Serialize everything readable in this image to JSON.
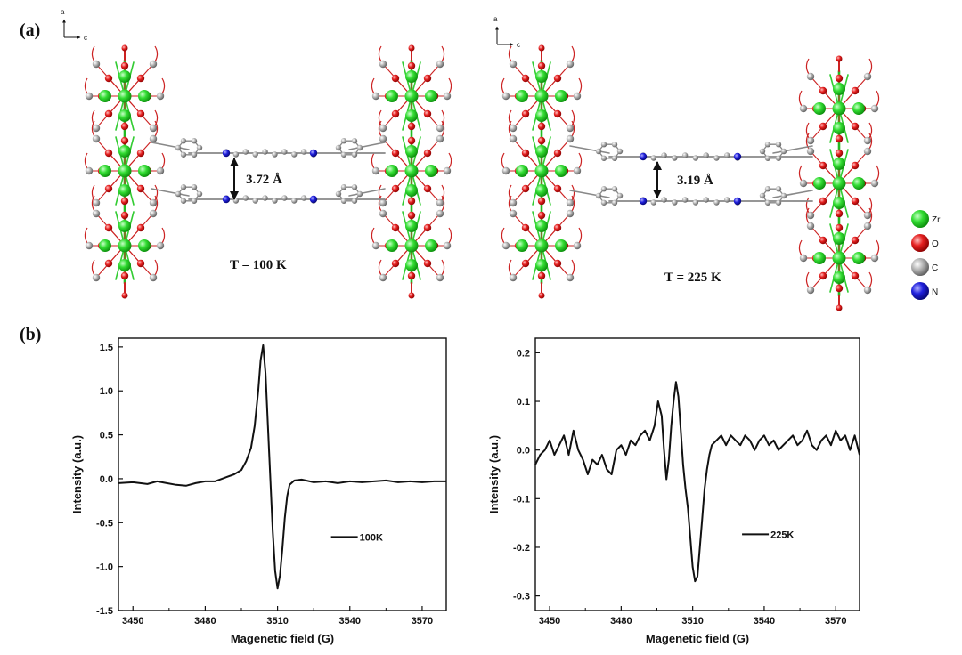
{
  "panel_a": {
    "label": "(a)",
    "axes_up": "a",
    "axes_right": "c",
    "left_structure": {
      "distance": "3.72 Å",
      "temperature": "T = 100 K"
    },
    "right_structure": {
      "distance": "3.19 Å",
      "temperature": "T = 225 K"
    },
    "legend": [
      {
        "symbol": "Zr",
        "color": "#22cc22"
      },
      {
        "symbol": "O",
        "color": "#dd1111"
      },
      {
        "symbol": "C",
        "color": "#999999"
      },
      {
        "symbol": "N",
        "color": "#1515cc"
      }
    ]
  },
  "panel_b": {
    "label": "(b)"
  },
  "chart_data": [
    {
      "type": "line",
      "xlabel": "Magenetic field (G)",
      "ylabel": "Intensity (a.u.)",
      "xlim": [
        3444,
        3580
      ],
      "ylim": [
        -1.5,
        1.6
      ],
      "xticks": [
        3450,
        3480,
        3510,
        3540,
        3570
      ],
      "yticks": [
        -1.5,
        -1.0,
        -0.5,
        0.0,
        0.5,
        1.0,
        1.5
      ],
      "series": [
        {
          "name": "100K",
          "x": [
            3444,
            3450,
            3456,
            3460,
            3464,
            3468,
            3472,
            3476,
            3480,
            3484,
            3488,
            3492,
            3495,
            3497,
            3499,
            3500.5,
            3502,
            3503,
            3504,
            3505,
            3506,
            3507,
            3508,
            3509,
            3510,
            3511,
            3512,
            3513,
            3514,
            3515,
            3517,
            3520,
            3525,
            3530,
            3535,
            3540,
            3545,
            3550,
            3555,
            3560,
            3565,
            3570,
            3575,
            3580
          ],
          "y": [
            -0.05,
            -0.04,
            -0.06,
            -0.03,
            -0.05,
            -0.07,
            -0.08,
            -0.05,
            -0.03,
            -0.03,
            0.01,
            0.05,
            0.1,
            0.2,
            0.35,
            0.6,
            1.0,
            1.35,
            1.52,
            1.2,
            0.6,
            0.0,
            -0.6,
            -1.05,
            -1.25,
            -1.1,
            -0.8,
            -0.45,
            -0.2,
            -0.07,
            -0.02,
            -0.01,
            -0.04,
            -0.03,
            -0.05,
            -0.03,
            -0.04,
            -0.03,
            -0.02,
            -0.04,
            -0.03,
            -0.04,
            -0.03,
            -0.03
          ]
        }
      ]
    },
    {
      "type": "line",
      "xlabel": "Magenetic field (G)",
      "ylabel": "Intensity (a.u.)",
      "xlim": [
        3444,
        3580
      ],
      "ylim": [
        -0.33,
        0.23
      ],
      "xticks": [
        3450,
        3480,
        3510,
        3540,
        3570
      ],
      "yticks": [
        -0.3,
        -0.2,
        -0.1,
        0.0,
        0.1,
        0.2
      ],
      "series": [
        {
          "name": "225K",
          "x": [
            3444,
            3446,
            3448,
            3450,
            3452,
            3454,
            3456,
            3458,
            3460,
            3462,
            3464,
            3466,
            3468,
            3470,
            3472,
            3474,
            3476,
            3478,
            3480,
            3482,
            3484,
            3486,
            3488,
            3490,
            3492,
            3494,
            3495.5,
            3497,
            3498,
            3499,
            3500,
            3501,
            3502,
            3503,
            3504,
            3505,
            3506,
            3507,
            3508,
            3509,
            3510,
            3511,
            3512,
            3513,
            3514,
            3515,
            3516,
            3517,
            3518,
            3520,
            3522,
            3524,
            3526,
            3528,
            3530,
            3532,
            3534,
            3536,
            3538,
            3540,
            3542,
            3544,
            3546,
            3548,
            3550,
            3552,
            3554,
            3556,
            3558,
            3560,
            3562,
            3564,
            3566,
            3568,
            3570,
            3572,
            3574,
            3576,
            3578,
            3580
          ],
          "y": [
            -0.03,
            -0.01,
            0.0,
            0.02,
            -0.01,
            0.01,
            0.03,
            -0.01,
            0.04,
            0.0,
            -0.02,
            -0.05,
            -0.02,
            -0.03,
            -0.01,
            -0.04,
            -0.05,
            0.0,
            0.01,
            -0.01,
            0.02,
            0.01,
            0.03,
            0.04,
            0.02,
            0.05,
            0.1,
            0.07,
            0.0,
            -0.06,
            -0.02,
            0.05,
            0.1,
            0.14,
            0.11,
            0.04,
            -0.03,
            -0.08,
            -0.12,
            -0.18,
            -0.24,
            -0.27,
            -0.26,
            -0.2,
            -0.14,
            -0.08,
            -0.04,
            -0.01,
            0.01,
            0.02,
            0.03,
            0.01,
            0.03,
            0.02,
            0.01,
            0.03,
            0.02,
            0.0,
            0.02,
            0.03,
            0.01,
            0.02,
            0.0,
            0.01,
            0.02,
            0.03,
            0.01,
            0.02,
            0.04,
            0.01,
            0.0,
            0.02,
            0.03,
            0.01,
            0.04,
            0.02,
            0.03,
            0.0,
            0.03,
            -0.01
          ]
        }
      ]
    }
  ]
}
